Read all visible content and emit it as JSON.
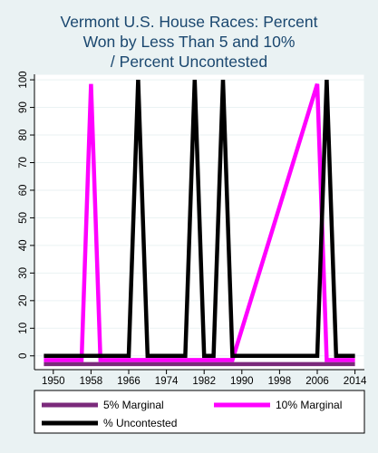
{
  "chart_data": {
    "type": "line",
    "title_lines": [
      "Vermont U.S. House Races: Percent",
      "Won by Less Than 5 and 10%",
      "/ Percent Uncontested"
    ],
    "xlabel": "",
    "ylabel": "",
    "xlim": [
      1946,
      2016
    ],
    "ylim": [
      -5,
      102
    ],
    "x_ticks": [
      1950,
      1958,
      1966,
      1974,
      1982,
      1990,
      1998,
      2006,
      2014
    ],
    "y_ticks": [
      0,
      10,
      20,
      30,
      40,
      50,
      60,
      70,
      80,
      90,
      100
    ],
    "grid": true,
    "legend_position": "bottom",
    "series": [
      {
        "name": "5% Marginal",
        "color": "#7b2a7b",
        "offset": -3,
        "points": [
          [
            1948,
            0
          ],
          [
            2014,
            0
          ]
        ]
      },
      {
        "name": "10% Marginal",
        "color": "#ff00ff",
        "offset": -1.5,
        "points": [
          [
            1948,
            0
          ],
          [
            1956,
            0
          ],
          [
            1958,
            100
          ],
          [
            1960,
            0
          ],
          [
            1988,
            0
          ],
          [
            2006,
            100
          ],
          [
            2008,
            0
          ],
          [
            2014,
            0
          ]
        ]
      },
      {
        "name": "% Uncontested",
        "color": "#000000",
        "offset": 0,
        "points": [
          [
            1948,
            0
          ],
          [
            1964,
            0
          ],
          [
            1966,
            0
          ],
          [
            1968,
            100
          ],
          [
            1970,
            0
          ],
          [
            1978,
            0
          ],
          [
            1980,
            100
          ],
          [
            1982,
            0
          ],
          [
            1984,
            0
          ],
          [
            1986,
            100
          ],
          [
            1988,
            0
          ],
          [
            2006,
            0
          ],
          [
            2008,
            100
          ],
          [
            2010,
            0
          ],
          [
            2014,
            0
          ]
        ]
      }
    ]
  }
}
